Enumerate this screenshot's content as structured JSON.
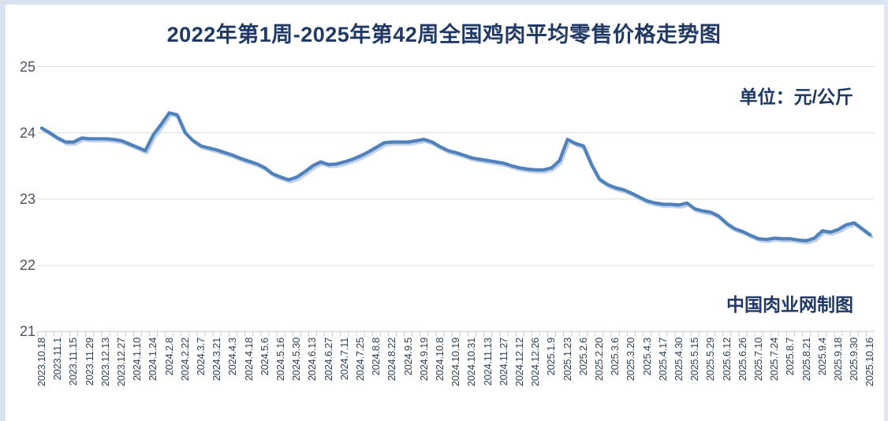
{
  "title": "2022年第1周-2025年第42周全国鸡肉平均零售价格走势图",
  "colors": {
    "title_text": "#1f3864",
    "line": "#4f81bd",
    "line_shadow": "#b9cbe3",
    "grid": "#dadde2",
    "axis": "#c7ccd4",
    "y_label_text": "#49525f",
    "x_label_text": "#2e4053",
    "edge": "#d9e2ef"
  },
  "chart_data": {
    "type": "line",
    "title": "2022年第1周-2025年第42周全国鸡肉平均零售价格走势图",
    "annotations": {
      "unit": "单位：元/公斤",
      "watermark": "中国肉业网制图"
    },
    "ylabel": "",
    "xlabel": "",
    "ylim": [
      21,
      25
    ],
    "y_ticks": [
      25,
      24,
      23,
      22,
      21
    ],
    "grid": "horizontal",
    "legend": "none",
    "x_label_rotation": -90,
    "x_tick_labels": [
      "2023.10.18",
      "2023.11.1",
      "2023.11.15",
      "2023.11.29",
      "2023.12.13",
      "2023.12.27",
      "2024.1.10",
      "2024.1.24",
      "2024.2.8",
      "2024.2.22",
      "2024.3.7",
      "2024.3.21",
      "2024.4.3",
      "2024.4.18",
      "2024.5.6",
      "2024.5.16",
      "2024.5.30",
      "2024.6.13",
      "2024.6.27",
      "2024.7.11",
      "2024.7.25",
      "2024.8.8",
      "2024.8.22",
      "2024.9.5",
      "2024.9.19",
      "2024.10.8",
      "2024.10.19",
      "2024.10.31",
      "2024.11.13",
      "2024.11.27",
      "2024.12.12",
      "2024.12.26",
      "2025.1.9",
      "2025.1.23",
      "2025.2.6",
      "2025.2.20",
      "2025.3.6",
      "2025.3.20",
      "2025.4.3",
      "2025.4.17",
      "2025.4.30",
      "2025.5.15",
      "2025.5.29",
      "2025.6.12",
      "2025.6.26",
      "2025.7.10",
      "2025.7.24",
      "2025.8.7",
      "2025.8.21",
      "2025.9.4",
      "2025.9.18",
      "2025.9.30",
      "2025.10.16"
    ],
    "values": [
      24.07,
      24.0,
      23.92,
      23.86,
      23.86,
      23.92,
      23.91,
      23.91,
      23.91,
      23.9,
      23.88,
      23.83,
      23.78,
      23.73,
      23.97,
      24.13,
      24.3,
      24.27,
      24.0,
      23.88,
      23.8,
      23.77,
      23.74,
      23.7,
      23.66,
      23.61,
      23.57,
      23.53,
      23.47,
      23.38,
      23.33,
      23.29,
      23.33,
      23.41,
      23.5,
      23.56,
      23.52,
      23.53,
      23.56,
      23.6,
      23.65,
      23.71,
      23.78,
      23.85,
      23.86,
      23.86,
      23.86,
      23.88,
      23.9,
      23.86,
      23.79,
      23.73,
      23.7,
      23.66,
      23.62,
      23.6,
      23.58,
      23.56,
      23.54,
      23.5,
      23.47,
      23.45,
      23.44,
      23.44,
      23.47,
      23.58,
      23.9,
      23.84,
      23.8,
      23.52,
      23.3,
      23.22,
      23.17,
      23.14,
      23.09,
      23.03,
      22.97,
      22.94,
      22.92,
      22.92,
      22.91,
      22.94,
      22.85,
      22.82,
      22.8,
      22.74,
      22.63,
      22.55,
      22.51,
      22.45,
      22.4,
      22.39,
      22.41,
      22.4,
      22.4,
      22.38,
      22.37,
      22.41,
      22.52,
      22.5,
      22.54,
      22.61,
      22.64,
      22.55,
      22.46
    ]
  }
}
